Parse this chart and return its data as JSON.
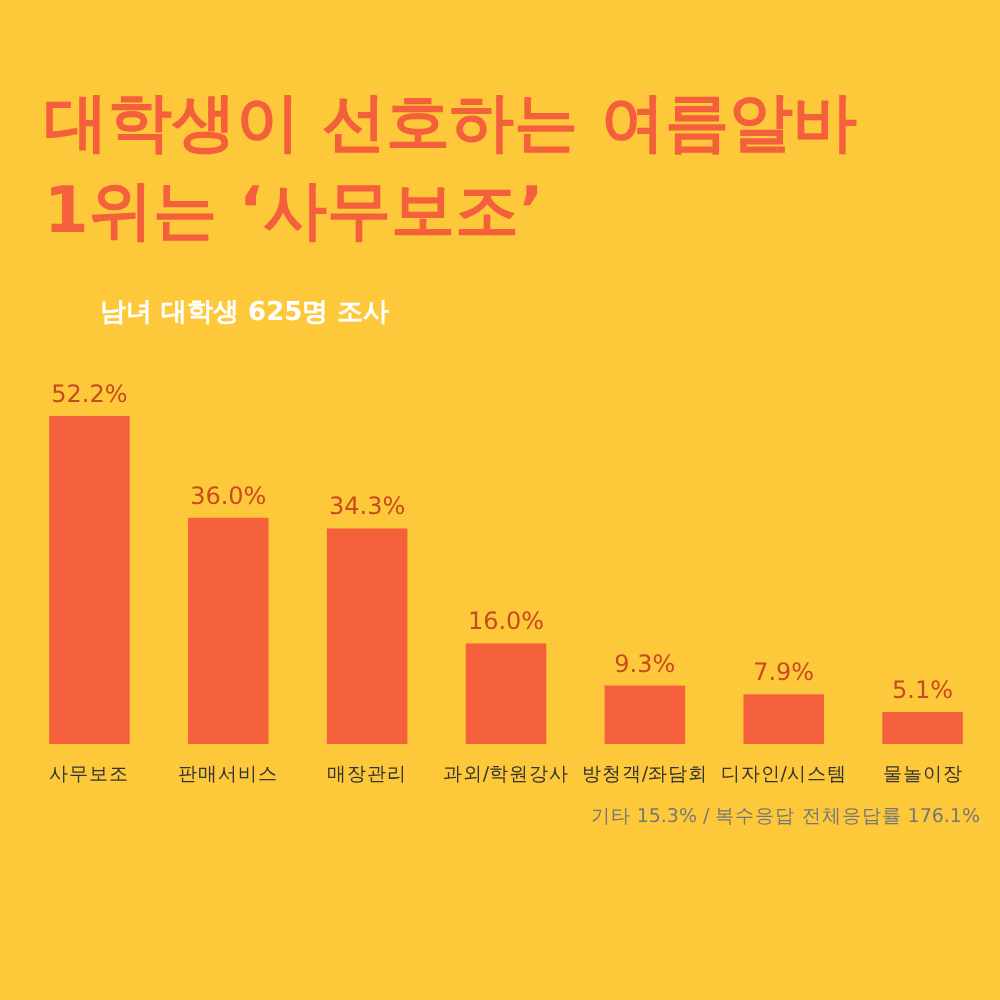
{
  "chart_data": {
    "type": "bar",
    "title": "대학생이 선호하는 여름알바 1위는 ‘사무보조’",
    "subtitle": "남녀 대학생 625명 조사",
    "categories": [
      "사무보조",
      "판매서비스",
      "매장관리",
      "과외/학원강사",
      "방청객/좌담회",
      "디자인/시스템",
      "물놀이장"
    ],
    "values": [
      52.2,
      36.0,
      34.3,
      16.0,
      9.3,
      7.9,
      5.1
    ],
    "value_labels": [
      "52.2%",
      "36.0%",
      "34.3%",
      "16.0%",
      "9.3%",
      "7.9%",
      "5.1%"
    ],
    "color": "#f4603c",
    "annotations": [
      "기타 15.3% / 복수응답 전체응답률 176.1%"
    ]
  }
}
